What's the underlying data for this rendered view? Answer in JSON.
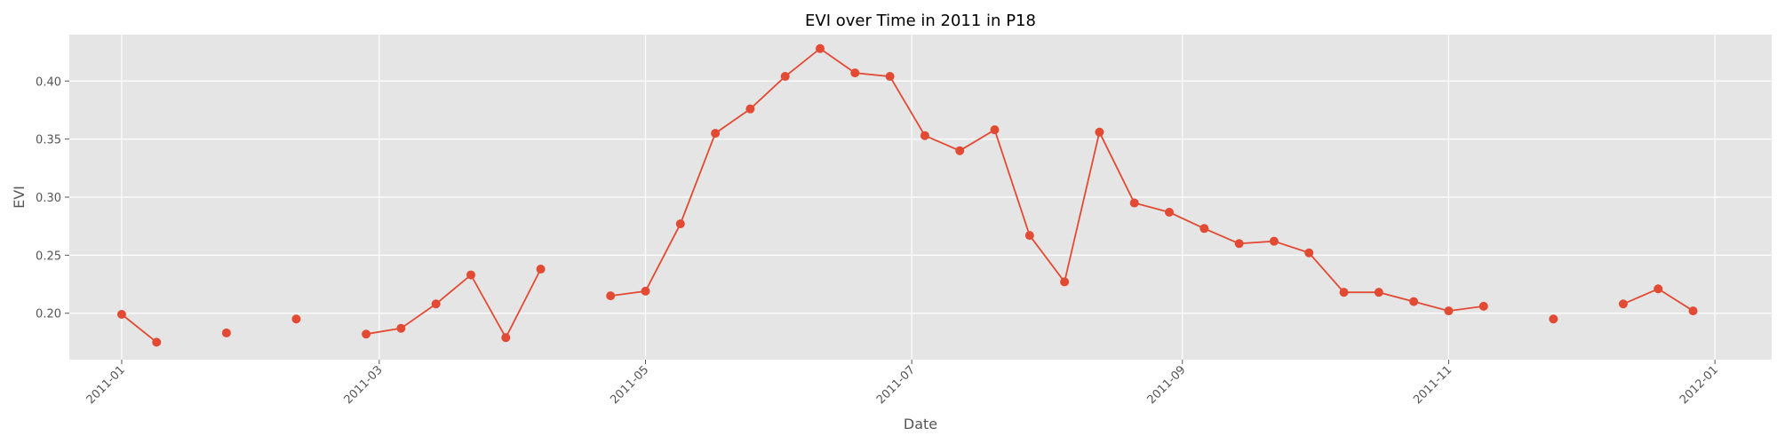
{
  "chart_data": {
    "type": "line",
    "title": "EVI over Time in 2011 in P18",
    "xlabel": "Date",
    "ylabel": "EVI",
    "x_ticks": [
      "2011-01",
      "2011-03",
      "2011-05",
      "2011-07",
      "2011-09",
      "2011-11",
      "2012-01"
    ],
    "y_ticks": [
      0.2,
      0.25,
      0.3,
      0.35,
      0.4
    ],
    "xlim": [
      "2010-12-20",
      "2012-01-14"
    ],
    "ylim": [
      0.16,
      0.44
    ],
    "grid": true,
    "colors": {
      "line": "#E24A33",
      "plot_bg": "#E5E5E5",
      "grid": "#FFFFFF",
      "text": "#555555"
    },
    "series": [
      {
        "x": [
          "2011-01-01",
          "2011-01-09",
          "2011-01-17",
          "2011-01-25",
          "2011-02-02",
          "2011-02-10",
          "2011-02-18",
          "2011-02-26",
          "2011-03-06",
          "2011-03-14",
          "2011-03-22",
          "2011-03-30",
          "2011-04-07",
          "2011-04-15",
          "2011-04-23",
          "2011-05-01",
          "2011-05-09",
          "2011-05-17",
          "2011-05-25",
          "2011-06-02",
          "2011-06-10",
          "2011-06-18",
          "2011-06-26",
          "2011-07-04",
          "2011-07-12",
          "2011-07-20",
          "2011-07-28",
          "2011-08-05",
          "2011-08-13",
          "2011-08-21",
          "2011-08-29",
          "2011-09-06",
          "2011-09-14",
          "2011-09-22",
          "2011-09-30",
          "2011-10-08",
          "2011-10-16",
          "2011-10-24",
          "2011-11-01",
          "2011-11-09",
          "2011-11-17",
          "2011-11-25",
          "2011-12-03",
          "2011-12-11",
          "2011-12-19",
          "2011-12-27"
        ],
        "y": [
          0.199,
          0.175,
          null,
          0.183,
          null,
          0.195,
          null,
          0.182,
          0.187,
          0.208,
          0.233,
          0.179,
          0.238,
          null,
          0.215,
          0.219,
          0.277,
          0.355,
          0.376,
          0.404,
          0.428,
          0.407,
          0.404,
          0.353,
          0.34,
          0.358,
          0.267,
          0.227,
          0.356,
          0.295,
          0.287,
          0.273,
          0.26,
          0.262,
          0.252,
          0.218,
          0.218,
          0.21,
          0.202,
          0.206,
          null,
          0.195,
          null,
          0.208,
          0.221,
          0.202
        ]
      }
    ]
  }
}
